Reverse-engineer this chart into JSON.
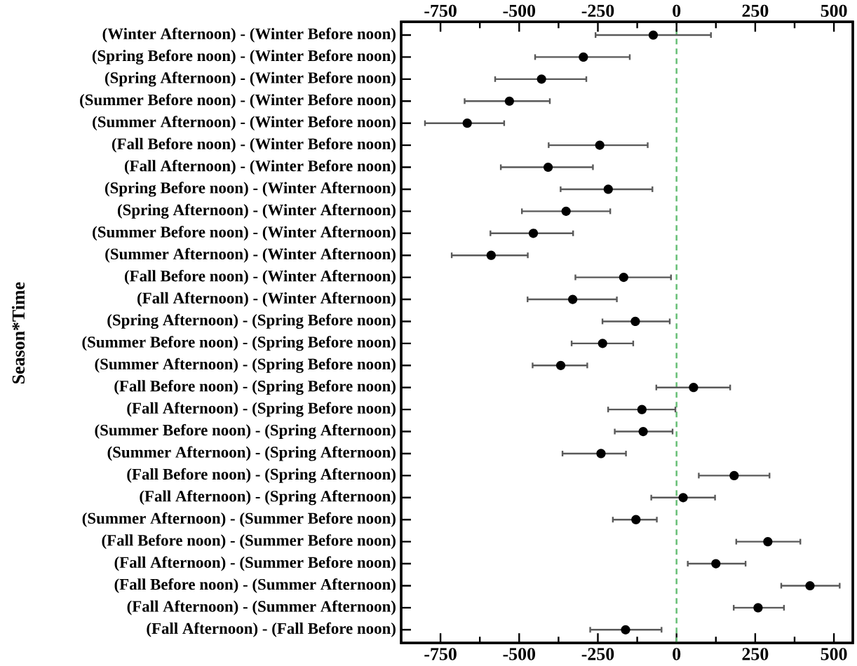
{
  "chart_data": {
    "type": "scatter",
    "orientation": "horizontal",
    "ylabel": "Season*Time",
    "marker": "circle",
    "color": "#000000",
    "categories": [
      "(Winter Afternoon) - (Winter Before noon)",
      "(Spring Before noon) - (Winter Before noon)",
      "(Spring Afternoon) - (Winter Before noon)",
      "(Summer Before noon) - (Winter Before noon)",
      "(Summer Afternoon) - (Winter Before noon)",
      "(Fall Before noon) - (Winter Before noon)",
      "(Fall Afternoon) - (Winter Before noon)",
      "(Spring Before noon) - (Winter Afternoon)",
      "(Spring Afternoon) - (Winter Afternoon)",
      "(Summer Before noon) - (Winter Afternoon)",
      "(Summer Afternoon) - (Winter Afternoon)",
      "(Fall Before noon) - (Winter Afternoon)",
      "(Fall Afternoon) - (Winter Afternoon)",
      "(Spring Afternoon) - (Spring Before noon)",
      "(Summer Before noon) - (Spring Before noon)",
      "(Summer Afternoon) - (Spring Before noon)",
      "(Fall Before noon) - (Spring Before noon)",
      "(Fall Afternoon) - (Spring Before noon)",
      "(Summer Before noon) - (Spring Afternoon)",
      "(Summer Afternoon) - (Spring Afternoon)",
      "(Fall Before noon) - (Spring Afternoon)",
      "(Fall Afternoon) - (Spring Afternoon)",
      "(Summer Afternoon) - (Summer Before noon)",
      "(Fall Before noon) - (Summer Before noon)",
      "(Fall Afternoon) - (Summer Before noon)",
      "(Fall Before noon) - (Summer Afternoon)",
      "(Fall Afternoon) - (Summer Afternoon)",
      "(Fall Afternoon) - (Fall Before noon)"
    ],
    "values": [
      -74,
      -296,
      -429,
      -531,
      -665,
      -244,
      -408,
      -217,
      -351,
      -455,
      -589,
      -168,
      -330,
      -131,
      -235,
      -368,
      54,
      -110,
      -106,
      -240,
      183,
      21,
      -129,
      290,
      125,
      424,
      259,
      -162
    ],
    "errors": [
      [
        -260,
        112
      ],
      [
        -452,
        -146
      ],
      [
        -579,
        -284
      ],
      [
        -676,
        -400
      ],
      [
        -802,
        -545
      ],
      [
        -409,
        -89
      ],
      [
        -561,
        -263
      ],
      [
        -371,
        -74
      ],
      [
        -494,
        -208
      ],
      [
        -594,
        -326
      ],
      [
        -717,
        -470
      ],
      [
        -324,
        -15
      ],
      [
        -476,
        -187
      ],
      [
        -238,
        -19
      ],
      [
        -336,
        -135
      ],
      [
        -460,
        -281
      ],
      [
        -67,
        173
      ],
      [
        -220,
        -1
      ],
      [
        -199,
        -10
      ],
      [
        -365,
        -158
      ],
      [
        68,
        298
      ],
      [
        -83,
        125
      ],
      [
        -205,
        -60
      ],
      [
        187,
        396
      ],
      [
        33,
        222
      ],
      [
        330,
        521
      ],
      [
        179,
        344
      ],
      [
        -277,
        -45
      ]
    ],
    "xlim": [
      -875,
      560
    ],
    "xticks": [
      -750,
      {
        "value": -625,
        "label": null
      },
      -500,
      {
        "value": -375,
        "label": null
      },
      -250,
      {
        "value": -125,
        "label": null
      },
      0,
      {
        "value": 125,
        "label": null
      },
      250,
      {
        "value": 375,
        "label": null
      },
      500
    ],
    "x2lim": [
      -875,
      560
    ],
    "x2ticks": [
      -750,
      {
        "value": -625,
        "label": null
      },
      -500,
      {
        "value": -375,
        "label": null
      },
      -250,
      {
        "value": -125,
        "label": null
      },
      0,
      {
        "value": 125,
        "label": null
      },
      250,
      {
        "value": 375,
        "label": null
      },
      500
    ],
    "ref_lines": [
      {
        "axis": "x",
        "value": 0,
        "color": "#6cc17a",
        "line_style": "dashed"
      }
    ]
  }
}
